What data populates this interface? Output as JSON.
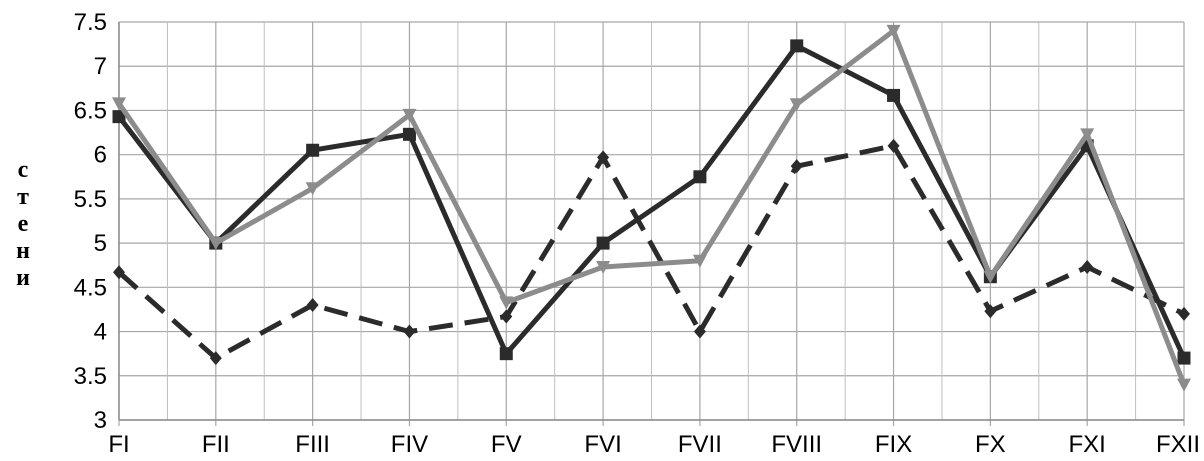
{
  "chart_data": {
    "type": "line",
    "title": "",
    "xlabel": "",
    "ylabel": "стени",
    "categories": [
      "FI",
      "FII",
      "FIII",
      "FIV",
      "FV",
      "FVI",
      "FVII",
      "FVIII",
      "FIX",
      "FX",
      "FXI",
      "FXII"
    ],
    "ylim": [
      3,
      7.5
    ],
    "yticks": [
      "3",
      "3.5",
      "4",
      "4.5",
      "5",
      "5.5",
      "6",
      "6.5",
      "7",
      "7.5"
    ],
    "grid": true,
    "legend": "none",
    "series": [
      {
        "color": "#2b2b2b",
        "line_style": "dashed",
        "marker": "diamond",
        "values": [
          4.67,
          3.7,
          4.3,
          4.0,
          4.17,
          5.97,
          4.0,
          5.87,
          6.1,
          4.23,
          4.73,
          4.2
        ]
      },
      {
        "color": "#2b2b2b",
        "line_style": "solid",
        "marker": "square",
        "values": [
          6.43,
          5.0,
          6.05,
          6.23,
          3.75,
          5.0,
          5.75,
          7.23,
          6.67,
          4.62,
          6.1,
          3.7
        ]
      },
      {
        "color": "#8c8c8c",
        "line_style": "solid",
        "marker": "triangle-down",
        "values": [
          6.58,
          5.0,
          5.62,
          6.45,
          4.33,
          4.73,
          4.8,
          6.57,
          7.4,
          4.62,
          6.23,
          3.4
        ]
      }
    ]
  }
}
